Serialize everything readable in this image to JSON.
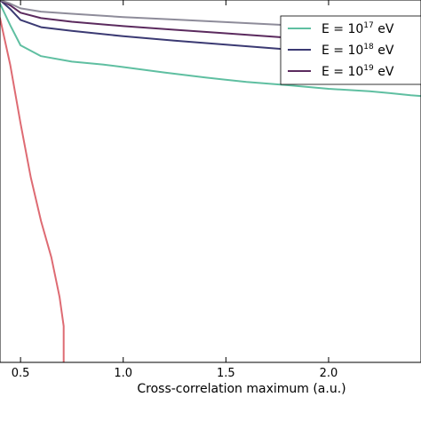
{
  "chart_data": {
    "type": "line",
    "title": "",
    "xlabel": "Cross-correlation maximum (a.u.)",
    "ylabel": "",
    "xlim": [
      0.4,
      2.45
    ],
    "ylim": [
      0,
      1.0
    ],
    "x_ticks": [
      "0.5",
      "1.0",
      "1.5",
      "2.0"
    ],
    "x_tick_values": [
      0.5,
      1.0,
      1.5,
      2.0
    ],
    "grid": false,
    "legend_position": "top-right",
    "series": [
      {
        "name": "",
        "color": "#de6b73",
        "points": [
          [
            0.36,
            1.0
          ],
          [
            0.4,
            0.95
          ],
          [
            0.45,
            0.82
          ],
          [
            0.5,
            0.66
          ],
          [
            0.55,
            0.51
          ],
          [
            0.6,
            0.39
          ],
          [
            0.65,
            0.29
          ],
          [
            0.69,
            0.18
          ],
          [
            0.71,
            0.1
          ],
          [
            0.71,
            0.0
          ]
        ]
      },
      {
        "name": "E = 10^17 eV",
        "legend_prefix": "E = 10",
        "legend_exp": "17",
        "legend_suffix": " eV",
        "color": "#5fbfa1",
        "points": [
          [
            0.36,
            1.0
          ],
          [
            0.4,
            0.99
          ],
          [
            0.45,
            0.93
          ],
          [
            0.5,
            0.875
          ],
          [
            0.6,
            0.845
          ],
          [
            0.75,
            0.83
          ],
          [
            0.9,
            0.822
          ],
          [
            1.0,
            0.815
          ],
          [
            1.2,
            0.8
          ],
          [
            1.4,
            0.786
          ],
          [
            1.6,
            0.774
          ],
          [
            1.8,
            0.765
          ],
          [
            2.0,
            0.755
          ],
          [
            2.2,
            0.748
          ],
          [
            2.3,
            0.743
          ],
          [
            2.4,
            0.737
          ],
          [
            2.45,
            0.735
          ]
        ]
      },
      {
        "name": "E = 10^18 eV",
        "legend_prefix": "E = 10",
        "legend_exp": "18",
        "legend_suffix": " eV",
        "color": "#3b3a73",
        "points": [
          [
            0.36,
            1.0
          ],
          [
            0.4,
            1.0
          ],
          [
            0.45,
            0.975
          ],
          [
            0.5,
            0.945
          ],
          [
            0.6,
            0.925
          ],
          [
            0.75,
            0.915
          ],
          [
            1.0,
            0.9
          ],
          [
            1.25,
            0.888
          ],
          [
            1.5,
            0.877
          ],
          [
            1.75,
            0.866
          ],
          [
            2.0,
            0.855
          ],
          [
            2.25,
            0.845
          ],
          [
            2.45,
            0.838
          ]
        ]
      },
      {
        "name": "E = 10^19 eV",
        "legend_prefix": "E = 10",
        "legend_exp": "19",
        "legend_suffix": " eV",
        "color": "#5b2a5e",
        "points": [
          [
            0.36,
            1.0
          ],
          [
            0.4,
            1.0
          ],
          [
            0.45,
            0.985
          ],
          [
            0.5,
            0.965
          ],
          [
            0.6,
            0.95
          ],
          [
            0.75,
            0.94
          ],
          [
            1.0,
            0.928
          ],
          [
            1.25,
            0.918
          ],
          [
            1.5,
            0.908
          ],
          [
            1.75,
            0.898
          ],
          [
            2.0,
            0.888
          ],
          [
            2.25,
            0.878
          ],
          [
            2.45,
            0.873
          ]
        ]
      },
      {
        "name": "",
        "color": "#8e8c9a",
        "points": [
          [
            0.36,
            1.0
          ],
          [
            0.4,
            1.0
          ],
          [
            0.45,
            0.99
          ],
          [
            0.5,
            0.977
          ],
          [
            0.6,
            0.968
          ],
          [
            0.75,
            0.962
          ],
          [
            1.0,
            0.953
          ],
          [
            1.25,
            0.946
          ],
          [
            1.5,
            0.939
          ],
          [
            1.75,
            0.932
          ],
          [
            2.0,
            0.925
          ],
          [
            2.25,
            0.918
          ],
          [
            2.45,
            0.913
          ]
        ]
      }
    ]
  }
}
